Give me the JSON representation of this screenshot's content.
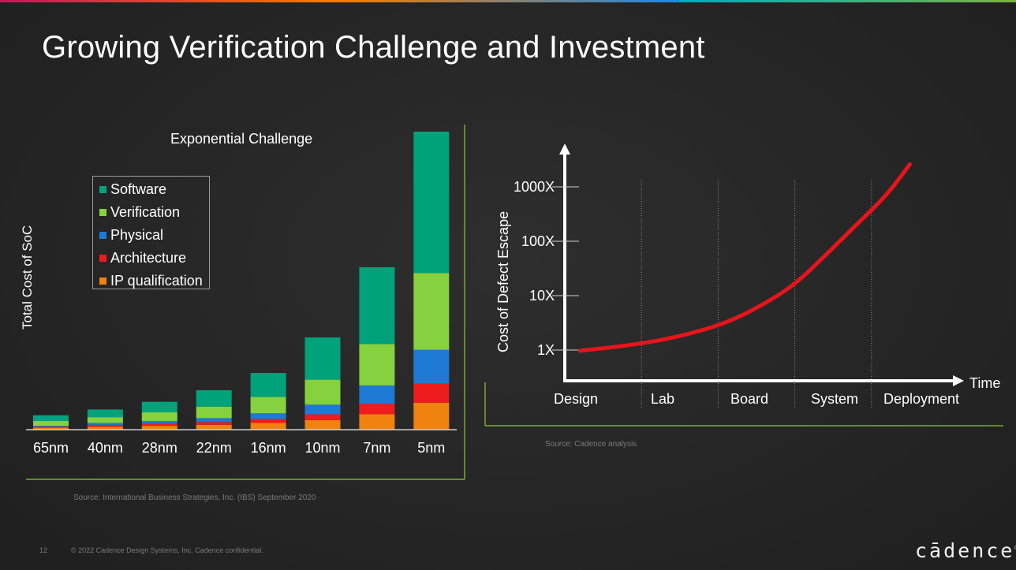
{
  "topbar_colors": [
    "#c2185b",
    "#f57c00",
    "#1e88e5",
    "#00acc1",
    "#7cb342"
  ],
  "page": {
    "title": "Growing Verification Challenge and Investment",
    "slide_number": "12",
    "copyright": "© 2022 Cadence Design Systems, Inc. Cadence confidential.",
    "logo_text": "cādence",
    "logo_mark": "®"
  },
  "chart_data": [
    {
      "type": "bar",
      "stacked": true,
      "title": "Exponential Challenge",
      "ylabel": "Total Cost of SoC",
      "xlabel": "",
      "categories": [
        "65nm",
        "40nm",
        "28nm",
        "22nm",
        "16nm",
        "10nm",
        "7nm",
        "5nm"
      ],
      "series": [
        {
          "name": "IP qualification",
          "color": "#f0820f",
          "values": [
            2,
            3,
            4,
            5,
            7,
            10,
            16,
            28
          ]
        },
        {
          "name": "Architecture",
          "color": "#ee1c1c",
          "values": [
            1,
            2,
            2,
            3,
            4,
            6,
            11,
            20
          ]
        },
        {
          "name": "Physical",
          "color": "#1e7ad4",
          "values": [
            1,
            2,
            3,
            4,
            6,
            10,
            19,
            35
          ]
        },
        {
          "name": "Verification",
          "color": "#86d13e",
          "values": [
            5,
            6,
            9,
            12,
            17,
            26,
            43,
            80
          ]
        },
        {
          "name": "Software",
          "color": "#00a27a",
          "values": [
            6,
            8,
            11,
            17,
            25,
            44,
            80,
            147
          ]
        }
      ],
      "legend_order": [
        "Software",
        "Verification",
        "Physical",
        "Architecture",
        "IP qualification"
      ],
      "ylim": [
        0,
        310
      ],
      "source": "Source: International Business Strategies, Inc. (IBS) September 2020"
    },
    {
      "type": "line",
      "title": "",
      "ylabel": "Cost of Defect Escape",
      "xlabel": "Time",
      "y_scale": "log",
      "y_ticks": [
        {
          "label": "1X",
          "value": 1
        },
        {
          "label": "10X",
          "value": 10
        },
        {
          "label": "100X",
          "value": 100
        },
        {
          "label": "1000X",
          "value": 1000
        }
      ],
      "x_phases": [
        "Design",
        "Lab",
        "Board",
        "System",
        "Deployment"
      ],
      "xlim": [
        0,
        5
      ],
      "ylim": [
        0.3,
        3000
      ],
      "series": [
        {
          "name": "Cost of Defect Escape",
          "color": "#e8141b",
          "x": [
            0.2,
            0.8,
            1.3,
            1.8,
            2.2,
            2.6,
            3.0,
            3.4,
            3.8,
            4.2,
            4.5
          ],
          "y": [
            0.97,
            1.2,
            1.55,
            2.3,
            3.6,
            7,
            16,
            55,
            200,
            700,
            2600
          ]
        }
      ],
      "source": "Source: Cadence analysis"
    }
  ]
}
